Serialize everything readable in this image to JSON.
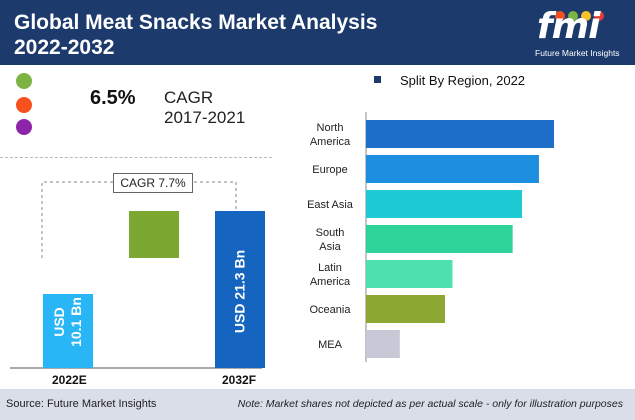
{
  "header": {
    "title_line1": "Global Meat Snacks Market Analysis",
    "title_line2": "2022-2032",
    "logo_letters": "fmi",
    "logo_subtitle": "Future Market Insights"
  },
  "highlight": {
    "value": "6.5%",
    "label": "CAGR",
    "period": "2017-2021",
    "dot_colors": [
      "#7cb342",
      "#f4511e",
      "#8e24aa"
    ]
  },
  "waterfall": {
    "cagr_text": "CAGR 7.7%",
    "bars": [
      {
        "label": "2022E",
        "value_text": "USD 10.1 Bn",
        "value": 10.1,
        "color": "#29b6f6"
      },
      {
        "label": "2032F",
        "value_text": "USD 21.3 Bn",
        "value": 21.3,
        "color": "#1565c0"
      }
    ],
    "increment_color": "#7ca832"
  },
  "chart_data": {
    "type": "bar",
    "orientation": "horizontal",
    "title": "Split By Region, 2022",
    "categories": [
      "North America",
      "Europe",
      "East Asia",
      "South Asia",
      "Latin America",
      "Oceania",
      "MEA"
    ],
    "category_lines": [
      [
        "North",
        "America"
      ],
      [
        "Europe"
      ],
      [
        "East Asia"
      ],
      [
        "South",
        "Asia"
      ],
      [
        "Latin",
        "America"
      ],
      [
        "Oceania"
      ],
      [
        "MEA"
      ]
    ],
    "values": [
      100,
      92,
      83,
      78,
      46,
      42,
      18
    ],
    "colors": [
      "#1e6fc9",
      "#1e8fe0",
      "#1ecad3",
      "#2ed39a",
      "#4fe0b0",
      "#8ca832",
      "#c7c9d6"
    ],
    "xlim": [
      0,
      100
    ],
    "grid": false,
    "legend": "none"
  },
  "footer": {
    "source": "Source: Future Market Insights",
    "note": "Note: Market shares not depicted as per actual scale - only for illustration purposes"
  }
}
